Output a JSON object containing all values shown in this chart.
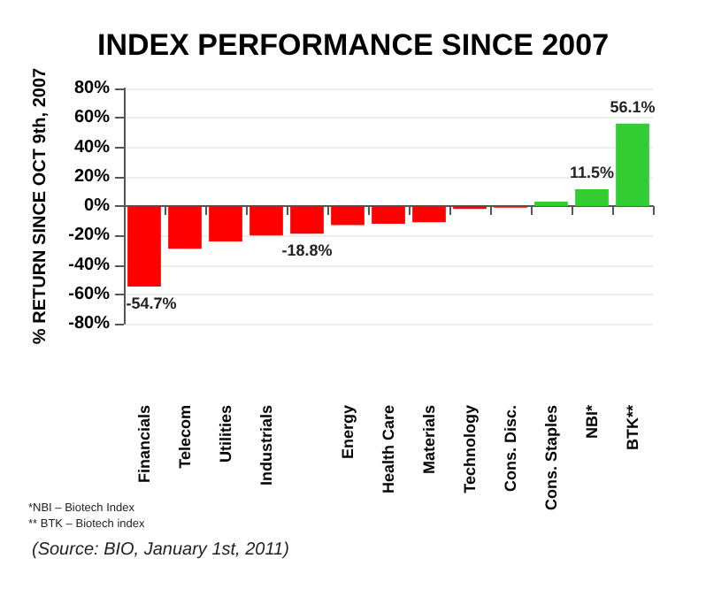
{
  "chart_data": {
    "type": "bar",
    "title": "INDEX PERFORMANCE SINCE 2007",
    "ylabel": "% RETURN SINCE OCT 9th, 2007",
    "categories": [
      "Financials",
      "Telecom",
      "Utilities",
      "Industrials",
      null,
      "Energy",
      "Health Care",
      "Materials",
      "Technology",
      "Cons. Disc.",
      "Cons. Staples",
      "NBI*",
      "BTK**"
    ],
    "values": [
      -54.7,
      -29,
      -24,
      -20,
      -18.8,
      -13,
      -12,
      -11,
      -2,
      -1,
      3,
      11.5,
      56.1
    ],
    "colors": [
      "#ff0000",
      "#ff0000",
      "#ff0000",
      "#ff0000",
      "#ff0000",
      "#ff0000",
      "#ff0000",
      "#ff0000",
      "#ff0000",
      "#ff0000",
      "#33cc33",
      "#33cc33",
      "#33cc33"
    ],
    "value_labels": [
      "-54.7%",
      null,
      null,
      null,
      "-18.8%",
      null,
      null,
      null,
      null,
      null,
      null,
      "11.5%",
      "56.1%"
    ],
    "ylim": [
      -80,
      80
    ],
    "yticks": [
      {
        "value": -80,
        "label": "-80%"
      },
      {
        "value": -60,
        "label": "-60%"
      },
      {
        "value": -40,
        "label": "-40%"
      },
      {
        "value": -20,
        "label": "-20%"
      },
      {
        "value": 0,
        "label": "0%"
      },
      {
        "value": 20,
        "label": "20%"
      },
      {
        "value": 40,
        "label": "40%"
      },
      {
        "value": 60,
        "label": "60%"
      },
      {
        "value": 80,
        "label": "80%"
      }
    ],
    "grid": "y",
    "annotations": [
      "*NBI – Biotech Index",
      "** BTK – Biotech index",
      "(Source: BIO, January 1st, 2011)"
    ]
  }
}
